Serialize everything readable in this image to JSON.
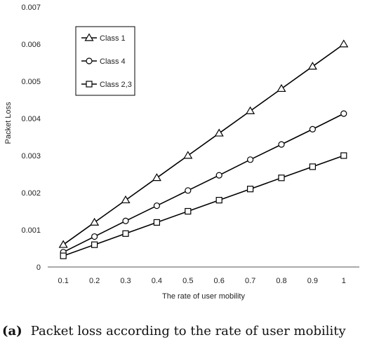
{
  "chart_data": {
    "type": "line",
    "title": "",
    "xlabel": "The rate of user mobility",
    "ylabel": "Packet Loss",
    "x": [
      0.1,
      0.2,
      0.3,
      0.4,
      0.5,
      0.6,
      0.7,
      0.8,
      0.9,
      1
    ],
    "x_tick_labels": [
      "0.1",
      "0.2",
      "0.3",
      "0.4",
      "0.5",
      "0.6",
      "0.7",
      "0.8",
      "0.9",
      "1"
    ],
    "ylim": [
      0,
      0.007
    ],
    "y_ticks": [
      0,
      0.001,
      0.002,
      0.003,
      0.004,
      0.005,
      0.006,
      0.007
    ],
    "y_tick_labels": [
      "0",
      "0.001",
      "0.002",
      "0.003",
      "0.004",
      "0.005",
      "0.006",
      "0.007"
    ],
    "grid": false,
    "legend_position": "top-left",
    "series": [
      {
        "name": "Class 1",
        "marker": "triangle",
        "values": [
          0.0006,
          0.0012,
          0.0018,
          0.0024,
          0.003,
          0.0036,
          0.0042,
          0.0048,
          0.0054,
          0.006
        ]
      },
      {
        "name": "Class 4",
        "marker": "circle",
        "values": [
          0.0004,
          0.00082,
          0.00124,
          0.00165,
          0.00206,
          0.00247,
          0.00289,
          0.0033,
          0.00371,
          0.00413
        ]
      },
      {
        "name": "Class 2,3",
        "marker": "square",
        "values": [
          0.0003,
          0.0006,
          0.0009,
          0.0012,
          0.0015,
          0.0018,
          0.0021,
          0.0024,
          0.0027,
          0.003
        ]
      }
    ],
    "line_color": "#000000"
  },
  "caption": {
    "letter": "(a)",
    "text": "Packet loss according to the rate of user mobility"
  }
}
